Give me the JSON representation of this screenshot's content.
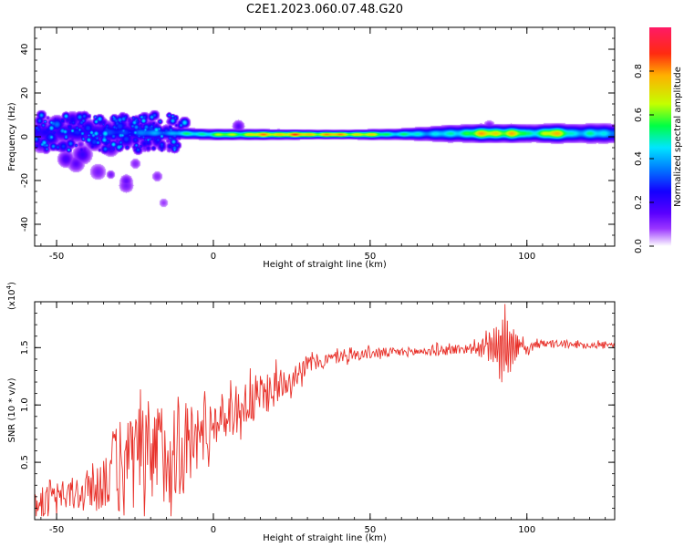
{
  "figure_title": "C2E1.2023.060.07.48.G20",
  "colorbar": {
    "label": "Normalized spectral amplitude",
    "ticks": [
      "0.0",
      "0.2",
      "0.4",
      "0.6",
      "0.8"
    ],
    "tick_values": [
      0.0,
      0.2,
      0.4,
      0.6,
      0.8
    ],
    "range": [
      0,
      1
    ],
    "gradient_colors": [
      "#ffffff",
      "#9a36ff",
      "#5a00ff",
      "#1400ff",
      "#0077ff",
      "#00e5ff",
      "#00ff44",
      "#c4ff00",
      "#ffb000",
      "#ff2a10",
      "#ff1a66"
    ],
    "gradient_stops": [
      0.0,
      0.08,
      0.15,
      0.25,
      0.35,
      0.45,
      0.55,
      0.65,
      0.78,
      0.88,
      1.0
    ]
  },
  "chart_data": [
    {
      "type": "heatmap",
      "name": "spectrogram",
      "xlabel": "Height of straight line (km)",
      "ylabel": "Frequency (Hz)",
      "xlim": [
        -57,
        128
      ],
      "ylim": [
        -50,
        50
      ],
      "x_ticks": [
        -50,
        0,
        50,
        100
      ],
      "x_tick_labels": [
        "-50",
        "0",
        "50",
        "100"
      ],
      "y_ticks": [
        -40,
        -20,
        0,
        20,
        40
      ],
      "y_tick_labels": [
        "-40",
        "-20",
        "0",
        "20",
        "40"
      ],
      "band": {
        "center_hz": [
          [
            -57,
            2
          ],
          [
            -30,
            2
          ],
          [
            -10,
            1.5
          ],
          [
            0,
            1
          ],
          [
            50,
            1
          ],
          [
            80,
            1.5
          ],
          [
            100,
            1.5
          ],
          [
            128,
            1.5
          ]
        ],
        "half_width_hz": [
          [
            -57,
            4
          ],
          [
            -30,
            4
          ],
          [
            -10,
            2
          ],
          [
            40,
            1.5
          ],
          [
            60,
            2
          ],
          [
            75,
            3
          ],
          [
            100,
            3
          ],
          [
            128,
            3.5
          ]
        ],
        "peak_amplitude": [
          [
            -57,
            0.25
          ],
          [
            -35,
            0.3
          ],
          [
            -15,
            0.45
          ],
          [
            0,
            0.65
          ],
          [
            20,
            0.9
          ],
          [
            45,
            0.85
          ],
          [
            60,
            0.55
          ],
          [
            75,
            0.5
          ],
          [
            85,
            0.8
          ],
          [
            95,
            0.85
          ],
          [
            100,
            0.55
          ],
          [
            108,
            0.85
          ],
          [
            115,
            0.55
          ],
          [
            128,
            0.5
          ]
        ]
      },
      "scattered_patches": [
        {
          "x": -50,
          "y": 6,
          "a": 0.35
        },
        {
          "x": -48,
          "y": -4,
          "a": 0.3
        },
        {
          "x": -45,
          "y": 8,
          "a": 0.25
        },
        {
          "x": -42,
          "y": -8,
          "a": 0.2
        },
        {
          "x": -40,
          "y": 4,
          "a": 0.3
        },
        {
          "x": -38,
          "y": -2,
          "a": 0.3
        },
        {
          "x": -36,
          "y": 7,
          "a": 0.25
        },
        {
          "x": -34,
          "y": 3,
          "a": 0.3
        },
        {
          "x": -33,
          "y": -5,
          "a": 0.2
        },
        {
          "x": -30,
          "y": 5,
          "a": 0.3
        },
        {
          "x": -28,
          "y": -1,
          "a": 0.3
        },
        {
          "x": -26,
          "y": 6,
          "a": 0.25
        },
        {
          "x": -24,
          "y": 2,
          "a": 0.3
        },
        {
          "x": -22,
          "y": -3,
          "a": 0.25
        },
        {
          "x": -20,
          "y": 4,
          "a": 0.3
        },
        {
          "x": -18,
          "y": -2,
          "a": 0.25
        },
        {
          "x": -15,
          "y": 3,
          "a": 0.3
        },
        {
          "x": -47,
          "y": -10,
          "a": 0.18
        },
        {
          "x": -44,
          "y": -12,
          "a": 0.15
        },
        {
          "x": -37,
          "y": -16,
          "a": 0.12
        },
        {
          "x": -33,
          "y": -17,
          "a": 0.12
        },
        {
          "x": -28,
          "y": -20,
          "a": 0.14
        },
        {
          "x": -28,
          "y": -22,
          "a": 0.12
        },
        {
          "x": -18,
          "y": -18,
          "a": 0.1
        },
        {
          "x": -16,
          "y": -30,
          "a": 0.08
        },
        {
          "x": -25,
          "y": -12,
          "a": 0.1
        },
        {
          "x": -55,
          "y": -3,
          "a": 0.2
        },
        {
          "x": -52,
          "y": 0,
          "a": 0.3
        },
        {
          "x": 8,
          "y": 5,
          "a": 0.15
        },
        {
          "x": 88,
          "y": 5,
          "a": 0.12
        }
      ]
    },
    {
      "type": "line",
      "name": "snr",
      "xlabel": "Height of straight line (km)",
      "ylabel": "SNR (10 * v/v)",
      "multiplier_label": "(x10",
      "multiplier_exponent": "4",
      "xlim": [
        -57,
        128
      ],
      "ylim": [
        0,
        19
      ],
      "x_ticks": [
        -50,
        0,
        50,
        100
      ],
      "x_tick_labels": [
        "-50",
        "0",
        "50",
        "100"
      ],
      "y_ticks": [
        5,
        10,
        15
      ],
      "y_tick_labels": [
        "0.5",
        "1.0",
        "1.5"
      ],
      "line_color": "#e8312a",
      "x_step_km": 0.25,
      "baseline": [
        [
          -57,
          1.5
        ],
        [
          -50,
          1.8
        ],
        [
          -40,
          2.5
        ],
        [
          -30,
          4.5
        ],
        [
          -20,
          5.5
        ],
        [
          -10,
          6.5
        ],
        [
          -8,
          6.5
        ],
        [
          0,
          8.5
        ],
        [
          10,
          10.0
        ],
        [
          20,
          11.5
        ],
        [
          30,
          13.5
        ],
        [
          40,
          14.2
        ],
        [
          50,
          14.5
        ],
        [
          70,
          14.7
        ],
        [
          85,
          15.0
        ],
        [
          95,
          15.0
        ],
        [
          100,
          14.8
        ],
        [
          104,
          15.3
        ],
        [
          110,
          15.3
        ],
        [
          128,
          15.2
        ]
      ],
      "noise_amplitude": [
        [
          -57,
          1.2
        ],
        [
          -45,
          1.5
        ],
        [
          -35,
          2.5
        ],
        [
          -30,
          4.5
        ],
        [
          -20,
          5.0
        ],
        [
          -10,
          4.5
        ],
        [
          0,
          2.0
        ],
        [
          10,
          2.2
        ],
        [
          15,
          2.0
        ],
        [
          25,
          1.2
        ],
        [
          35,
          0.6
        ],
        [
          60,
          0.4
        ],
        [
          85,
          0.5
        ],
        [
          90,
          2.0
        ],
        [
          93,
          4.0
        ],
        [
          96,
          2.0
        ],
        [
          100,
          0.4
        ],
        [
          128,
          0.3
        ]
      ],
      "minimum": 0.3,
      "maximum": 18.8
    }
  ]
}
